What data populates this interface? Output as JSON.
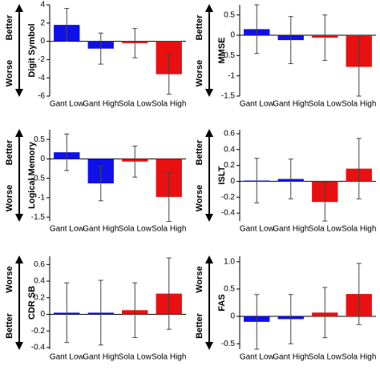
{
  "chart_data": [
    {
      "type": "bar",
      "ylabel": "Digit Symbol",
      "arrow_top": "Better",
      "arrow_bottom": "Worse",
      "categories": [
        "Gant Low",
        "Gant High",
        "Sola Low",
        "Sola High"
      ],
      "values": [
        1.8,
        -0.8,
        -0.2,
        -3.6
      ],
      "errors": [
        1.8,
        1.7,
        1.6,
        2.2
      ],
      "colors": [
        "#1010e8",
        "#1010e8",
        "#e81010",
        "#e81010"
      ],
      "ylim": [
        -6,
        4
      ],
      "yticks": [
        -6,
        -4,
        -2,
        0,
        2,
        4
      ]
    },
    {
      "type": "bar",
      "ylabel": "MMSE",
      "arrow_top": "Better",
      "arrow_bottom": "Worse",
      "categories": [
        "Gant Low",
        "Gant High",
        "Sola Low",
        "Sola High"
      ],
      "values": [
        0.15,
        -0.12,
        -0.06,
        -0.78
      ],
      "errors": [
        0.6,
        0.58,
        0.56,
        0.72
      ],
      "colors": [
        "#1010e8",
        "#1010e8",
        "#e81010",
        "#e81010"
      ],
      "ylim": [
        -1.5,
        0.75
      ],
      "yticks": [
        -1.5,
        -1,
        -0.5,
        0,
        0.5
      ]
    },
    {
      "type": "bar",
      "ylabel": "Logical Memory",
      "arrow_top": "Better",
      "arrow_bottom": "Worse",
      "categories": [
        "Gant Low",
        "Gant High",
        "Sola Low",
        "Sola High"
      ],
      "values": [
        0.17,
        -0.63,
        -0.07,
        -0.98
      ],
      "errors": [
        0.47,
        0.45,
        0.4,
        0.63
      ],
      "colors": [
        "#1010e8",
        "#1010e8",
        "#e81010",
        "#e81010"
      ],
      "ylim": [
        -1.6,
        0.75
      ],
      "yticks": [
        -1.5,
        -1,
        -0.5,
        0,
        0.5
      ]
    },
    {
      "type": "bar",
      "ylabel": "ISLT",
      "arrow_top": "Better",
      "arrow_bottom": "Worse",
      "categories": [
        "Gant Low",
        "Gant High",
        "Sola Low",
        "Sola High"
      ],
      "values": [
        0.01,
        0.03,
        -0.26,
        0.16
      ],
      "errors": [
        0.28,
        0.25,
        0.24,
        0.38
      ],
      "colors": [
        "#1010e8",
        "#1010e8",
        "#e81010",
        "#e81010"
      ],
      "ylim": [
        -0.5,
        0.65
      ],
      "yticks": [
        -0.4,
        -0.2,
        0,
        0.2,
        0.4,
        0.6
      ]
    },
    {
      "type": "bar",
      "ylabel": "CDR SB",
      "arrow_top": "Worse",
      "arrow_bottom": "Better",
      "categories": [
        "Gant Low",
        "Gant High",
        "Sola Low",
        "Sola High"
      ],
      "values": [
        0.02,
        0.02,
        0.05,
        0.25
      ],
      "errors": [
        0.36,
        0.39,
        0.33,
        0.43
      ],
      "colors": [
        "#1010e8",
        "#1010e8",
        "#e81010",
        "#e81010"
      ],
      "ylim": [
        -0.42,
        0.7
      ],
      "yticks": [
        -0.4,
        -0.2,
        0,
        0.2,
        0.4,
        0.6
      ]
    },
    {
      "type": "bar",
      "ylabel": "FAS",
      "arrow_top": "Worse",
      "arrow_bottom": "Better",
      "categories": [
        "Gant Low",
        "Gant High",
        "Sola Low",
        "Sola High"
      ],
      "values": [
        -0.1,
        -0.05,
        0.07,
        0.41
      ],
      "errors": [
        0.5,
        0.45,
        0.46,
        0.56
      ],
      "colors": [
        "#1010e8",
        "#1010e8",
        "#e81010",
        "#e81010"
      ],
      "ylim": [
        -0.6,
        1.1
      ],
      "yticks": [
        -0.5,
        0,
        0.5,
        {
          "value": 1,
          "label": "1.0"
        }
      ]
    }
  ]
}
